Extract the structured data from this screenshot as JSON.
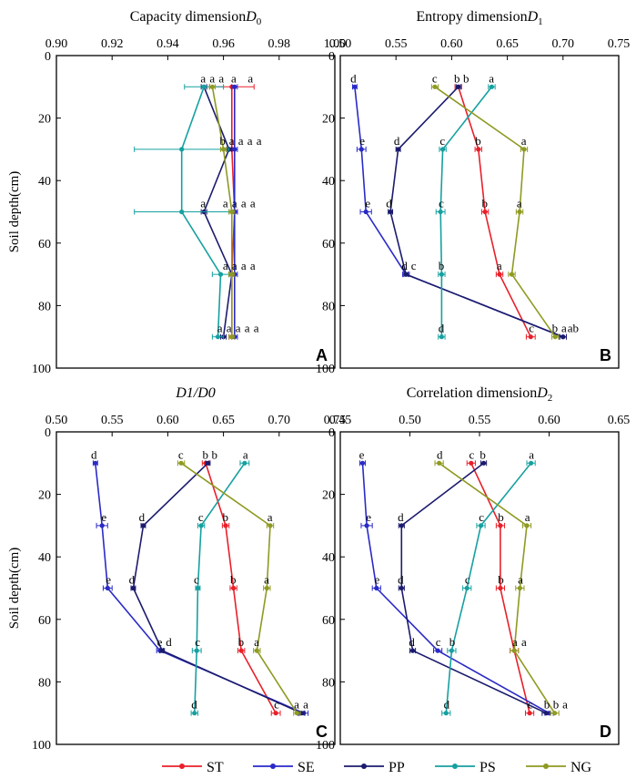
{
  "chart_data": [
    {
      "type": "line",
      "panel": "A",
      "title": "Capacity dimension",
      "title_symbol": "D",
      "title_subscript": "0",
      "ylabel": "Soil depth(cm)",
      "xlim": [
        0.9,
        1.0
      ],
      "xticks": [
        "0.90",
        "0.92",
        "0.94",
        "0.96",
        "0.98",
        "1.00"
      ],
      "ylim": [
        0,
        100
      ],
      "yticks": [
        "0",
        "20",
        "40",
        "60",
        "80",
        "100"
      ],
      "depths": [
        10,
        30,
        50,
        70,
        90
      ],
      "series": [
        {
          "name": "ST",
          "color": "#e8202a",
          "values": [
            0.963,
            0.963,
            0.964,
            0.963,
            0.963
          ],
          "err": [
            0.008,
            0.001,
            0.001,
            0.001,
            0.001
          ]
        },
        {
          "name": "SE",
          "color": "#2a2ac8",
          "values": [
            0.964,
            0.964,
            0.964,
            0.964,
            0.964
          ],
          "err": [
            0.001,
            0.001,
            0.001,
            0.001,
            0.001
          ]
        },
        {
          "name": "PP",
          "color": "#1b1b6e",
          "values": [
            0.953,
            0.962,
            0.953,
            0.963,
            0.96
          ],
          "err": [
            0.001,
            0.001,
            0.001,
            0.001,
            0.001
          ]
        },
        {
          "name": "PS",
          "color": "#16a0a0",
          "values": [
            0.953,
            0.945,
            0.945,
            0.959,
            0.958
          ],
          "err": [
            0.007,
            0.017,
            0.017,
            0.003,
            0.002
          ]
        },
        {
          "name": "NG",
          "color": "#8f9a22",
          "values": [
            0.956,
            0.96,
            0.963,
            0.963,
            0.963
          ],
          "err": [
            0.001,
            0.001,
            0.001,
            0.001,
            0.001
          ]
        }
      ],
      "annotations": [
        {
          "depth": 10,
          "letters": [
            "a",
            "a",
            "a",
            "a",
            "a"
          ]
        },
        {
          "depth": 30,
          "letters": [
            "b",
            "a",
            "a",
            "a",
            "a"
          ]
        },
        {
          "depth": 50,
          "letters": [
            "a",
            "a",
            "a",
            "a",
            "a"
          ]
        },
        {
          "depth": 70,
          "letters": [
            "a",
            "a",
            "a",
            "a"
          ]
        },
        {
          "depth": 90,
          "letters": [
            "a",
            "a",
            "a",
            "a",
            "a"
          ]
        }
      ]
    },
    {
      "type": "line",
      "panel": "B",
      "title": "Entropy dimension",
      "title_symbol": "D",
      "title_subscript": "1",
      "ylabel": "",
      "xlim": [
        0.5,
        0.75
      ],
      "xticks": [
        "0.50",
        "0.55",
        "0.60",
        "0.65",
        "0.70",
        "0.75"
      ],
      "ylim": [
        0,
        100
      ],
      "yticks": [
        "0",
        "20",
        "40",
        "60",
        "80",
        "100"
      ],
      "depths": [
        10,
        30,
        50,
        70,
        90
      ],
      "series": [
        {
          "name": "ST",
          "color": "#e8202a",
          "values": [
            0.606,
            0.624,
            0.63,
            0.643,
            0.671
          ],
          "err": [
            0.003,
            0.003,
            0.003,
            0.003,
            0.004
          ]
        },
        {
          "name": "SE",
          "color": "#2a2ac8",
          "values": [
            0.513,
            0.519,
            0.523,
            0.559,
            0.7
          ],
          "err": [
            0.002,
            0.004,
            0.005,
            0.003,
            0.003
          ]
        },
        {
          "name": "PP",
          "color": "#1b1b6e",
          "values": [
            0.606,
            0.552,
            0.545,
            0.559,
            0.7
          ],
          "err": [
            0.002,
            0.002,
            0.002,
            0.002,
            0.003
          ]
        },
        {
          "name": "PS",
          "color": "#16a0a0",
          "values": [
            0.636,
            0.592,
            0.59,
            0.591,
            0.591
          ],
          "err": [
            0.003,
            0.003,
            0.004,
            0.003,
            0.003
          ]
        },
        {
          "name": "NG",
          "color": "#8f9a22",
          "values": [
            0.585,
            0.665,
            0.661,
            0.654,
            0.693
          ],
          "err": [
            0.003,
            0.003,
            0.003,
            0.003,
            0.003
          ]
        }
      ],
      "annotations": [
        {
          "depth": 10,
          "letters": [
            "d",
            "c",
            "b",
            "b",
            "a"
          ]
        },
        {
          "depth": 30,
          "letters": [
            "e",
            "d",
            "c",
            "b",
            "a"
          ]
        },
        {
          "depth": 50,
          "letters": [
            "e",
            "d",
            "c",
            "b",
            "a"
          ]
        },
        {
          "depth": 70,
          "letters": [
            "d",
            "c",
            "b",
            "a"
          ]
        },
        {
          "depth": 90,
          "letters": [
            "d",
            "c",
            "b",
            "a",
            "ab"
          ]
        }
      ]
    },
    {
      "type": "line",
      "panel": "C",
      "title": "",
      "title_symbol": "D1/D0",
      "title_subscript": "",
      "ylabel": "Soil depth(cm)",
      "xlim": [
        0.5,
        0.75
      ],
      "xticks": [
        "0.50",
        "0.55",
        "0.60",
        "0.65",
        "0.70",
        "0.75"
      ],
      "ylim": [
        0,
        100
      ],
      "yticks": [
        "0",
        "20",
        "40",
        "60",
        "80",
        "100"
      ],
      "depths": [
        10,
        30,
        50,
        70,
        90
      ],
      "series": [
        {
          "name": "ST",
          "color": "#e8202a",
          "values": [
            0.634,
            0.652,
            0.659,
            0.666,
            0.697
          ],
          "err": [
            0.003,
            0.003,
            0.003,
            0.003,
            0.004
          ]
        },
        {
          "name": "SE",
          "color": "#2a2ac8",
          "values": [
            0.535,
            0.541,
            0.546,
            0.593,
            0.722
          ],
          "err": [
            0.002,
            0.005,
            0.004,
            0.003,
            0.004
          ]
        },
        {
          "name": "PP",
          "color": "#1b1b6e",
          "values": [
            0.636,
            0.578,
            0.569,
            0.595,
            0.72
          ],
          "err": [
            0.002,
            0.002,
            0.002,
            0.002,
            0.003
          ]
        },
        {
          "name": "PS",
          "color": "#16a0a0",
          "values": [
            0.669,
            0.63,
            0.627,
            0.626,
            0.624
          ],
          "err": [
            0.004,
            0.003,
            0.002,
            0.004,
            0.003
          ]
        },
        {
          "name": "NG",
          "color": "#8f9a22",
          "values": [
            0.612,
            0.692,
            0.689,
            0.68,
            0.716
          ],
          "err": [
            0.003,
            0.003,
            0.003,
            0.003,
            0.003
          ]
        }
      ],
      "annotations": [
        {
          "depth": 10,
          "letters": [
            "d",
            "c",
            "b",
            "b",
            "a"
          ]
        },
        {
          "depth": 30,
          "letters": [
            "e",
            "d",
            "c",
            "b",
            "a"
          ]
        },
        {
          "depth": 50,
          "letters": [
            "e",
            "d",
            "c",
            "b",
            "a"
          ]
        },
        {
          "depth": 70,
          "letters": [
            "e",
            "d",
            "c",
            "b",
            "a"
          ]
        },
        {
          "depth": 90,
          "letters": [
            "d",
            "c",
            "a",
            "a"
          ]
        }
      ]
    },
    {
      "type": "line",
      "panel": "D",
      "title": "Correlation dimension",
      "title_symbol": "D",
      "title_subscript": "2",
      "ylabel": "",
      "xlim": [
        0.45,
        0.65
      ],
      "xticks": [
        "0.45",
        "0.50",
        "0.55",
        "0.60",
        "0.65"
      ],
      "ylim": [
        0,
        100
      ],
      "yticks": [
        "0",
        "20",
        "40",
        "60",
        "80",
        "100"
      ],
      "depths": [
        10,
        30,
        50,
        70,
        90
      ],
      "series": [
        {
          "name": "ST",
          "color": "#e8202a",
          "values": [
            0.544,
            0.565,
            0.565,
            0.575,
            0.586
          ],
          "err": [
            0.003,
            0.003,
            0.003,
            0.003,
            0.003
          ]
        },
        {
          "name": "SE",
          "color": "#2a2ac8",
          "values": [
            0.466,
            0.469,
            0.476,
            0.52,
            0.6
          ],
          "err": [
            0.002,
            0.004,
            0.003,
            0.003,
            0.003
          ]
        },
        {
          "name": "PP",
          "color": "#1b1b6e",
          "values": [
            0.553,
            0.494,
            0.494,
            0.502,
            0.598
          ],
          "err": [
            0.002,
            0.002,
            0.002,
            0.002,
            0.003
          ]
        },
        {
          "name": "PS",
          "color": "#16a0a0",
          "values": [
            0.587,
            0.551,
            0.541,
            0.53,
            0.526
          ],
          "err": [
            0.003,
            0.003,
            0.003,
            0.003,
            0.003
          ]
        },
        {
          "name": "NG",
          "color": "#8f9a22",
          "values": [
            0.521,
            0.584,
            0.579,
            0.575,
            0.604
          ],
          "err": [
            0.003,
            0.003,
            0.003,
            0.003,
            0.003
          ]
        }
      ],
      "annotations": [
        {
          "depth": 10,
          "letters": [
            "e",
            "d",
            "c",
            "b",
            "a"
          ]
        },
        {
          "depth": 30,
          "letters": [
            "e",
            "d",
            "c",
            "b",
            "a"
          ]
        },
        {
          "depth": 50,
          "letters": [
            "e",
            "d",
            "c",
            "b",
            "a"
          ]
        },
        {
          "depth": 70,
          "letters": [
            "d",
            "c",
            "b",
            "a",
            "a"
          ]
        },
        {
          "depth": 90,
          "letters": [
            "d",
            "c",
            "b",
            "b",
            "a"
          ]
        }
      ]
    }
  ],
  "legend": [
    {
      "name": "ST",
      "color": "#e8202a"
    },
    {
      "name": "SE",
      "color": "#2a2ac8"
    },
    {
      "name": "PP",
      "color": "#1b1b6e"
    },
    {
      "name": "PS",
      "color": "#16a0a0"
    },
    {
      "name": "NG",
      "color": "#8f9a22"
    }
  ]
}
